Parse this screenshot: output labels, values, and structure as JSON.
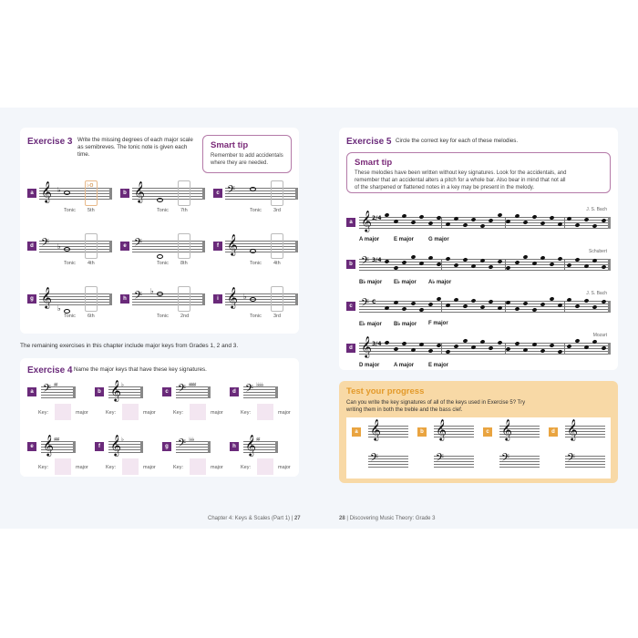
{
  "left_page": {
    "exercise3": {
      "title": "Exercise 3",
      "instruction": "Write the missing degrees of each major scale as semibreves. The tonic note is given each time.",
      "smart_tip": {
        "title": "Smart tip",
        "text": "Remember to add accidentals where they are needed."
      },
      "items": [
        {
          "letter": "a",
          "clef": "treble",
          "tonic": "Tonic",
          "degree": "5th",
          "accidental": "♭",
          "answer_example": "♭o"
        },
        {
          "letter": "b",
          "clef": "treble",
          "tonic": "Tonic",
          "degree": "7th",
          "accidental": ""
        },
        {
          "letter": "c",
          "clef": "bass",
          "tonic": "Tonic",
          "degree": "3rd",
          "accidental": ""
        },
        {
          "letter": "d",
          "clef": "bass",
          "tonic": "Tonic",
          "degree": "4th",
          "accidental": "♭"
        },
        {
          "letter": "e",
          "clef": "bass",
          "tonic": "Tonic",
          "degree": "8th",
          "accidental": ""
        },
        {
          "letter": "f",
          "clef": "treble",
          "tonic": "Tonic",
          "degree": "4th",
          "accidental": ""
        },
        {
          "letter": "g",
          "clef": "treble",
          "tonic": "Tonic",
          "degree": "6th",
          "accidental": "♭"
        },
        {
          "letter": "h",
          "clef": "bass",
          "tonic": "Tonic",
          "degree": "2nd",
          "accidental": "♭"
        },
        {
          "letter": "i",
          "clef": "treble",
          "tonic": "Tonic",
          "degree": "3rd",
          "accidental": "♭"
        }
      ]
    },
    "remaining_text": "The remaining exercises in this chapter include major keys from Grades 1, 2 and 3.",
    "exercise4": {
      "title": "Exercise 4",
      "instruction": "Name the major keys that have these key signatures.",
      "key_label": "Key:",
      "major_label": "major",
      "items": [
        {
          "letter": "a",
          "clef": "bass",
          "signature": "♯♯"
        },
        {
          "letter": "b",
          "clef": "treble",
          "signature": "♭"
        },
        {
          "letter": "c",
          "clef": "bass",
          "signature": "♯♯♯♯"
        },
        {
          "letter": "d",
          "clef": "bass",
          "signature": "♭♭♭♭"
        },
        {
          "letter": "e",
          "clef": "treble",
          "signature": "♯♯♯"
        },
        {
          "letter": "f",
          "clef": "treble",
          "signature": "♭"
        },
        {
          "letter": "g",
          "clef": "bass",
          "signature": "♭♭♭"
        },
        {
          "letter": "h",
          "clef": "treble",
          "signature": "♯♯"
        }
      ]
    },
    "footer": {
      "chapter": "Chapter 4: Keys & Scales (Part 1)",
      "page": "27"
    }
  },
  "right_page": {
    "exercise5": {
      "title": "Exercise 5",
      "instruction": "Circle the correct key for each of these melodies.",
      "smart_tip": {
        "title": "Smart tip",
        "text": "These melodies have been written without key signatures. Look for the accidentals, and remember that an accidental alters a pitch for a whole bar. Also bear in mind that not all of the sharpened or flattened notes in a key may be present in the melody."
      },
      "melodies": [
        {
          "letter": "a",
          "clef": "treble",
          "time": "2/4",
          "composer": "J. S. Bach",
          "options": [
            "A major",
            "E major",
            "G major"
          ]
        },
        {
          "letter": "b",
          "clef": "bass",
          "time": "3/4",
          "composer": "Schubert",
          "options": [
            "B♭ major",
            "E♭ major",
            "A♭ major"
          ]
        },
        {
          "letter": "c",
          "clef": "bass",
          "time": "C",
          "composer": "J. S. Bach",
          "options": [
            "E♭ major",
            "B♭ major",
            "F major"
          ]
        },
        {
          "letter": "d",
          "clef": "treble",
          "time": "3/4",
          "composer": "Mozart",
          "options": [
            "D major",
            "A major",
            "E major"
          ]
        }
      ]
    },
    "test_progress": {
      "title": "Test your progress",
      "text": "Can you write the key signatures of all of the keys used in Exercise 5? Try writing them in both the treble and the bass clef.",
      "items": [
        "a",
        "b",
        "c",
        "d"
      ]
    },
    "footer": {
      "page": "28",
      "book": "Discovering Music Theory: Grade 3"
    }
  },
  "colors": {
    "purple": "#6a2a7a",
    "orange": "#e9a440",
    "page_bg": "#f3f6fa"
  }
}
